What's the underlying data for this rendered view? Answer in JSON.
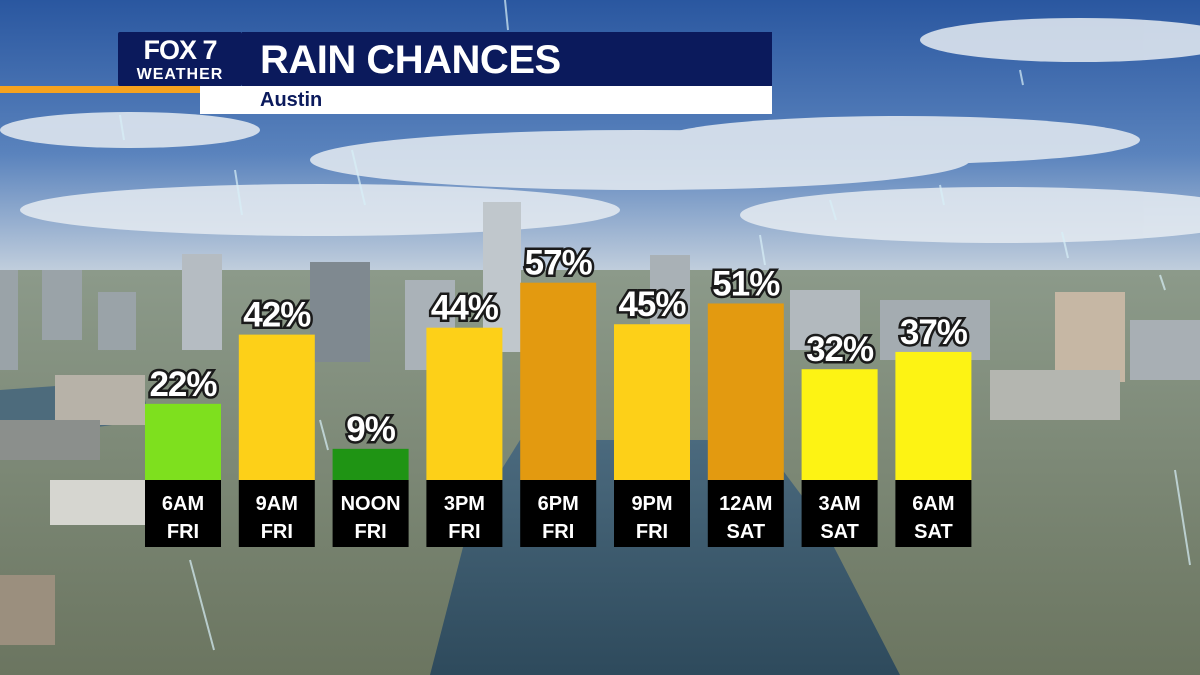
{
  "header": {
    "logo_text": "FOX 7",
    "logo_sub": "WEATHER",
    "title": "RAIN CHANCES",
    "subtitle": "Austin"
  },
  "colors": {
    "navy": "#0b1a5c",
    "accent_orange": "#f6a21e",
    "sky_top": "#2f5fa3",
    "sky_haze": "#c7d3df",
    "ground": "#6b7a6a",
    "river": "#39566a"
  },
  "chart_data": {
    "type": "bar",
    "title": "RAIN CHANCES",
    "subtitle": "Austin",
    "unit": "%",
    "ylim": [
      0,
      65
    ],
    "grid": false,
    "categories": [
      {
        "time": "6AM",
        "day": "FRI"
      },
      {
        "time": "9AM",
        "day": "FRI"
      },
      {
        "time": "NOON",
        "day": "FRI"
      },
      {
        "time": "3PM",
        "day": "FRI"
      },
      {
        "time": "6PM",
        "day": "FRI"
      },
      {
        "time": "9PM",
        "day": "FRI"
      },
      {
        "time": "12AM",
        "day": "SAT"
      },
      {
        "time": "3AM",
        "day": "SAT"
      },
      {
        "time": "6AM",
        "day": "SAT"
      }
    ],
    "values": [
      22,
      42,
      9,
      44,
      57,
      45,
      51,
      32,
      37
    ],
    "labels": [
      "22%",
      "42%",
      "9%",
      "44%",
      "57%",
      "45%",
      "51%",
      "32%",
      "37%"
    ],
    "bar_colors": [
      "#7ee01e",
      "#fdd018",
      "#1f9414",
      "#fdd018",
      "#e39a10",
      "#fdd018",
      "#e39a10",
      "#fdf314",
      "#fdf314"
    ]
  }
}
